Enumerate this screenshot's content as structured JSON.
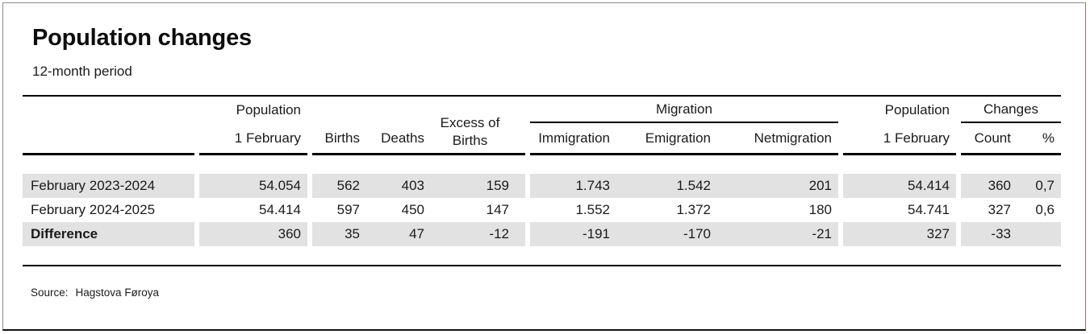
{
  "title": "Population changes",
  "subtitle": "12-month period",
  "source": {
    "label": "Source:",
    "value": "Hagstova Føroya"
  },
  "header": {
    "pop_start_l1": "Population",
    "pop_start_l2": "1 February",
    "births": "Births",
    "deaths": "Deaths",
    "excess_l1": "Excess of",
    "excess_l2": "Births",
    "migration_group": "Migration",
    "immigration": "Immigration",
    "emigration": "Emigration",
    "netmigration": "Netmigration",
    "pop_end_l1": "Population",
    "pop_end_l2": "1 February",
    "changes_group": "Changes",
    "count": "Count",
    "percent": "%"
  },
  "rows": [
    {
      "label": "February 2023-2024",
      "pop_start": "54.054",
      "births": "562",
      "deaths": "403",
      "excess": "159",
      "immigration": "1.743",
      "emigration": "1.542",
      "netmigration": "201",
      "pop_end": "54.414",
      "count": "360",
      "percent": "0,7"
    },
    {
      "label": "February 2024-2025",
      "pop_start": "54.414",
      "births": "597",
      "deaths": "450",
      "excess": "147",
      "immigration": "1.552",
      "emigration": "1.372",
      "netmigration": "180",
      "pop_end": "54.741",
      "count": "327",
      "percent": "0,6"
    },
    {
      "label": "Difference",
      "pop_start": "360",
      "births": "35",
      "deaths": "47",
      "excess": "-12",
      "immigration": "-191",
      "emigration": "-170",
      "netmigration": "-21",
      "pop_end": "327",
      "count": "-33",
      "percent": ""
    }
  ],
  "colors": {
    "stripe": "#e2e2e2",
    "rule": "#000000",
    "text": "#1a1a1a",
    "frame_gray": "#8a8a8a",
    "frame_right": "#8f7d45",
    "frame_bottom": "#111111"
  },
  "chart_data": {
    "type": "table",
    "title": "Population changes",
    "subtitle": "12-month period",
    "source": "Source: Hagstova Føroya",
    "columns": [
      "",
      "Population 1 February",
      "Births",
      "Deaths",
      "Excess of Births",
      "Immigration",
      "Emigration",
      "Netmigration",
      "Population 1 February",
      "Count",
      "%"
    ],
    "column_groups": [
      {
        "label": "Migration",
        "columns": [
          "Immigration",
          "Emigration",
          "Netmigration"
        ]
      },
      {
        "label": "Changes",
        "columns": [
          "Count",
          "%"
        ]
      }
    ],
    "rows": [
      {
        "label": "February 2023-2024",
        "values": [
          54054,
          562,
          403,
          159,
          1743,
          1542,
          201,
          54414,
          360,
          0.7
        ]
      },
      {
        "label": "February 2024-2025",
        "values": [
          54414,
          597,
          450,
          147,
          1552,
          1372,
          180,
          54741,
          327,
          0.6
        ]
      },
      {
        "label": "Difference",
        "values": [
          360,
          35,
          47,
          -12,
          -191,
          -170,
          -21,
          327,
          -33,
          null
        ]
      }
    ],
    "layout_hints": {
      "striped_rows": [
        0,
        2
      ],
      "bold_rows": [
        2
      ],
      "number_format": "dot thousands separator, comma decimal"
    }
  }
}
